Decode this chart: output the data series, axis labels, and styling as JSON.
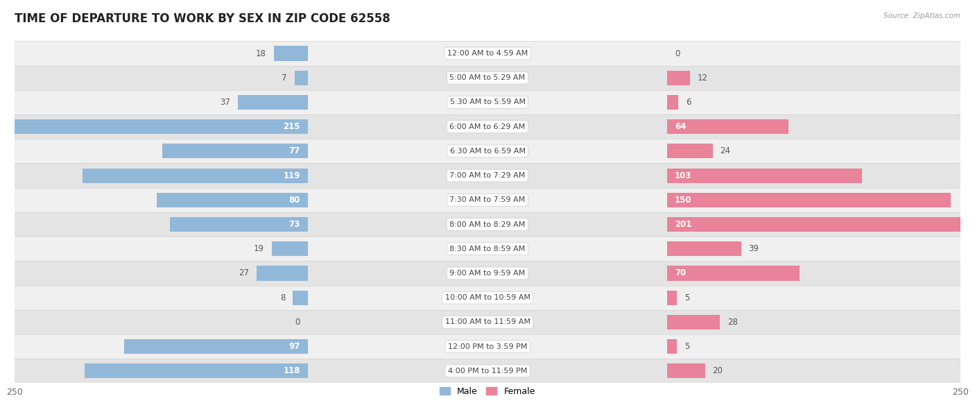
{
  "title": "TIME OF DEPARTURE TO WORK BY SEX IN ZIP CODE 62558",
  "source": "Source: ZipAtlas.com",
  "categories": [
    "12:00 AM to 4:59 AM",
    "5:00 AM to 5:29 AM",
    "5:30 AM to 5:59 AM",
    "6:00 AM to 6:29 AM",
    "6:30 AM to 6:59 AM",
    "7:00 AM to 7:29 AM",
    "7:30 AM to 7:59 AM",
    "8:00 AM to 8:29 AM",
    "8:30 AM to 8:59 AM",
    "9:00 AM to 9:59 AM",
    "10:00 AM to 10:59 AM",
    "11:00 AM to 11:59 AM",
    "12:00 PM to 3:59 PM",
    "4:00 PM to 11:59 PM"
  ],
  "male_values": [
    18,
    7,
    37,
    215,
    77,
    119,
    80,
    73,
    19,
    27,
    8,
    0,
    97,
    118
  ],
  "female_values": [
    0,
    12,
    6,
    64,
    24,
    103,
    150,
    201,
    39,
    70,
    5,
    28,
    5,
    20
  ],
  "male_color": "#92b8d9",
  "female_color": "#e8839a",
  "bar_height": 0.6,
  "xlim": 250,
  "title_fontsize": 12,
  "label_fontsize": 8.5,
  "category_fontsize": 8,
  "axis_label_fontsize": 9,
  "value_label_white_threshold": 50
}
